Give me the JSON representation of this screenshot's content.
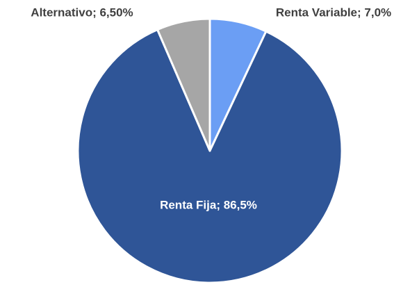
{
  "chart_data": {
    "type": "pie",
    "values": [
      7.0,
      86.5,
      6.5
    ],
    "value_labels": [
      "Renta Variable; 7,0%",
      "Renta Fija; 86,5%",
      "Alternativo; 6,50%"
    ],
    "colors": [
      "#6b9ef4",
      "#2f5597",
      "#a6a6a6"
    ]
  }
}
